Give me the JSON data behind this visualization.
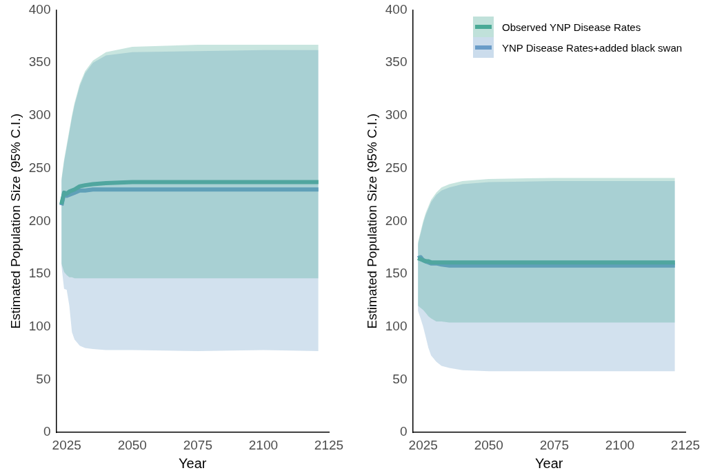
{
  "chart_data": [
    {
      "type": "line",
      "xlabel": "Year",
      "ylabel": "Estimated Population Size (95% C.I.)",
      "xlim": [
        2021,
        2125
      ],
      "xticks": [
        2025,
        2050,
        2075,
        2100,
        2125
      ],
      "ylim": [
        0,
        400
      ],
      "yticks": [
        0,
        50,
        100,
        150,
        200,
        250,
        300,
        350,
        400
      ],
      "legend": false,
      "x": [
        2023,
        2024,
        2025,
        2026,
        2027,
        2028,
        2030,
        2032,
        2035,
        2040,
        2050,
        2075,
        2100,
        2121
      ],
      "series": [
        {
          "color": "#4aaa96",
          "values": [
            216,
            227,
            226,
            228,
            229,
            230,
            233,
            234,
            235,
            236,
            237,
            237,
            237,
            237
          ],
          "lower": [
            160,
            152,
            149,
            147,
            147,
            146,
            146,
            146,
            146,
            146,
            146,
            146,
            146,
            146
          ],
          "upper": [
            240,
            258,
            272,
            286,
            300,
            312,
            330,
            342,
            352,
            360,
            365,
            367,
            367,
            367
          ]
        },
        {
          "color": "#6a9cc8",
          "values": [
            215,
            226,
            224,
            225,
            226,
            227,
            229,
            229,
            230,
            230,
            230,
            230,
            230,
            230
          ],
          "lower": [
            158,
            136,
            135,
            120,
            95,
            88,
            82,
            80,
            79,
            78,
            78,
            77,
            78,
            77
          ],
          "upper": [
            238,
            256,
            270,
            284,
            298,
            310,
            328,
            340,
            350,
            357,
            360,
            361,
            362,
            362
          ]
        }
      ]
    },
    {
      "type": "line",
      "xlabel": "Year",
      "ylabel": "Estimated Population Size (95% C.I.)",
      "xlim": [
        2021,
        2125
      ],
      "xticks": [
        2025,
        2050,
        2075,
        2100,
        2125
      ],
      "ylim": [
        0,
        400
      ],
      "yticks": [
        0,
        50,
        100,
        150,
        200,
        250,
        300,
        350,
        400
      ],
      "legend": "top right",
      "x": [
        2023,
        2024,
        2025,
        2026,
        2027,
        2028,
        2030,
        2032,
        2035,
        2040,
        2050,
        2075,
        2100,
        2121
      ],
      "series": [
        {
          "name": "Observed YNP Disease Rates",
          "color": "#4aaa96",
          "values": [
            165,
            164,
            163,
            162,
            162,
            161,
            161,
            161,
            161,
            161,
            161,
            161,
            161,
            161
          ],
          "lower": [
            120,
            118,
            116,
            113,
            110,
            108,
            105,
            105,
            104,
            104,
            104,
            104,
            104,
            104
          ],
          "upper": [
            180,
            190,
            200,
            208,
            214,
            220,
            227,
            232,
            235,
            238,
            240,
            241,
            241,
            241
          ]
        },
        {
          "name": "YNP Disease Rates+added black swan",
          "color": "#6a9cc8",
          "values": [
            165,
            166,
            163,
            162,
            161,
            160,
            160,
            159,
            158,
            158,
            158,
            158,
            158,
            158
          ],
          "lower": [
            115,
            108,
            100,
            90,
            80,
            73,
            67,
            63,
            61,
            59,
            58,
            58,
            58,
            58
          ],
          "upper": [
            178,
            188,
            198,
            206,
            212,
            218,
            225,
            229,
            232,
            235,
            237,
            238,
            238,
            238
          ]
        }
      ]
    }
  ]
}
